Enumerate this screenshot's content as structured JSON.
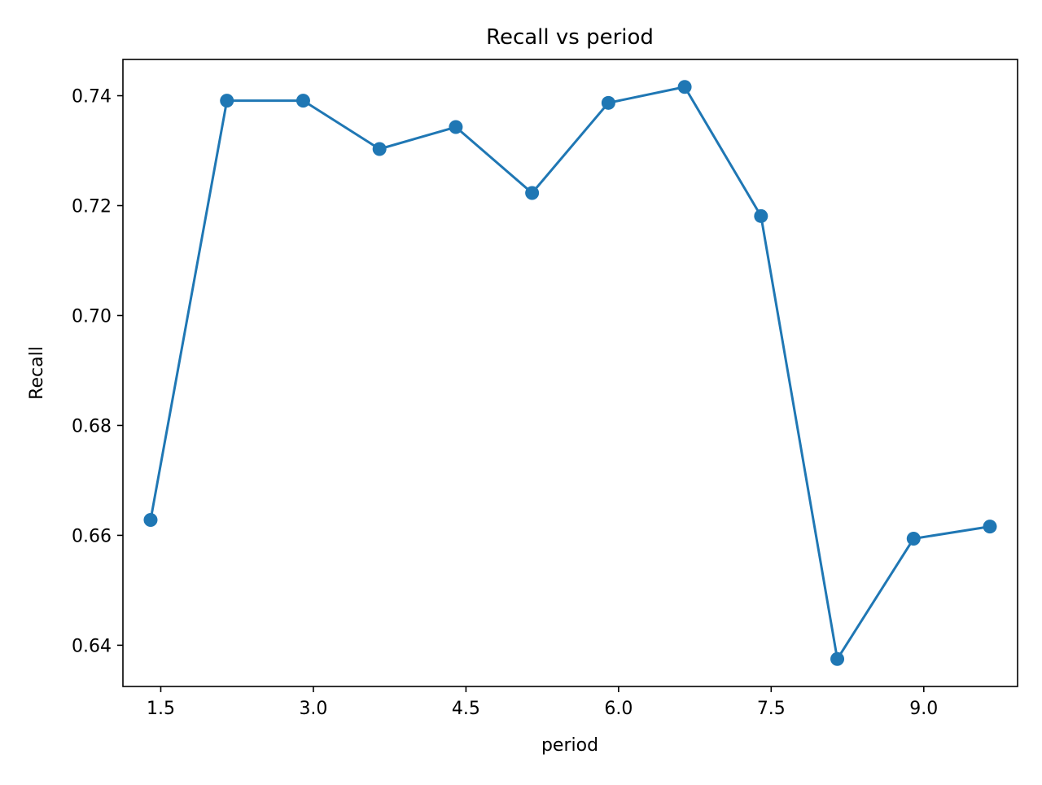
{
  "chart_data": {
    "type": "line",
    "title": "Recall vs period",
    "xlabel": "period",
    "ylabel": "Recall",
    "x": [
      1.4,
      2.15,
      2.9,
      3.65,
      4.4,
      5.15,
      5.9,
      6.65,
      7.4,
      8.15,
      8.9,
      9.65
    ],
    "series": [
      {
        "name": "Recall",
        "values": [
          0.6628,
          0.7391,
          0.7391,
          0.7303,
          0.7343,
          0.7223,
          0.7387,
          0.7416,
          0.7181,
          0.6375,
          0.6594,
          0.6616
        ]
      }
    ],
    "xlim": [
      1.128,
      9.922
    ],
    "ylim": [
      0.6325,
      0.7466
    ],
    "x_ticks": [
      1.5,
      3.0,
      4.5,
      6.0,
      7.5,
      9.0
    ],
    "x_tick_labels": [
      "1.5",
      "3.0",
      "4.5",
      "6.0",
      "7.5",
      "9.0"
    ],
    "y_ticks": [
      0.64,
      0.66,
      0.68,
      0.7,
      0.72,
      0.74
    ],
    "y_tick_labels": [
      "0.64",
      "0.66",
      "0.68",
      "0.70",
      "0.72",
      "0.74"
    ],
    "grid": false,
    "line_color": "#1f77b4",
    "marker": "circle"
  }
}
